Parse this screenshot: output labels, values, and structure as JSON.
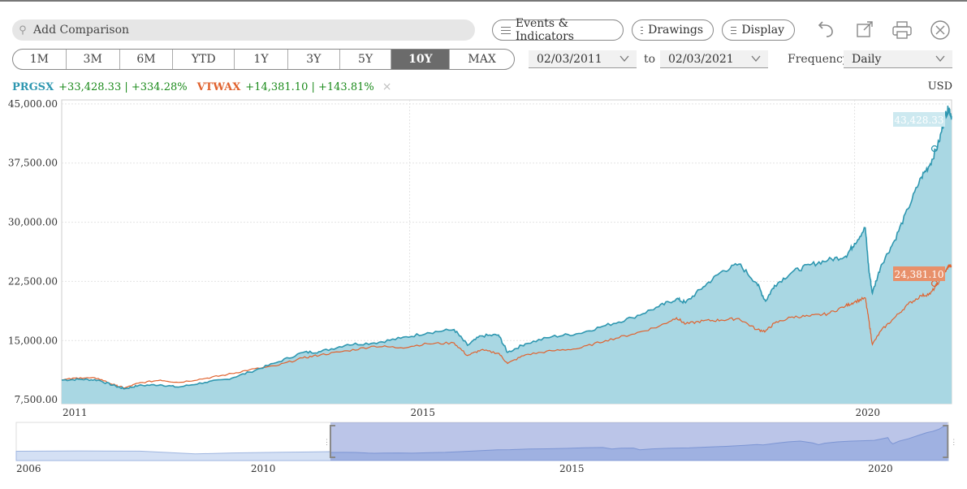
{
  "toolbar": {
    "search_placeholder": "Add Comparison",
    "events_label": "Events & Indicators",
    "drawings_label": "Drawings",
    "display_label": "Display",
    "icons": [
      "undo-icon",
      "export-icon",
      "print-icon",
      "close-icon"
    ]
  },
  "ranges": [
    {
      "label": "1M",
      "active": false
    },
    {
      "label": "3M",
      "active": false
    },
    {
      "label": "6M",
      "active": false
    },
    {
      "label": "YTD",
      "active": false
    },
    {
      "label": "1Y",
      "active": false
    },
    {
      "label": "3Y",
      "active": false
    },
    {
      "label": "5Y",
      "active": false
    },
    {
      "label": "10Y",
      "active": true
    },
    {
      "label": "MAX",
      "active": false
    }
  ],
  "dates": {
    "from": "02/03/2011",
    "to_label": "to",
    "to": "02/03/2021"
  },
  "frequency": {
    "label": "Frequency",
    "value": "Daily"
  },
  "legend": {
    "s1": {
      "ticker": "PRGSX",
      "change": "+33,428.33 | +334.28%"
    },
    "s2": {
      "ticker": "VTWAX",
      "change": "+14,381.10 | +143.81%"
    },
    "remove": "×"
  },
  "currency": "USD",
  "chart_data": {
    "type": "area",
    "x_axis": "date",
    "xlim": [
      2011.09,
      2021.09
    ],
    "ylim": [
      7000,
      45500
    ],
    "yticks": [
      7500,
      15000,
      22500,
      30000,
      37500,
      45000
    ],
    "ytick_labels": [
      "7,500.00",
      "15,000.00",
      "22,500.00",
      "30,000.00",
      "37,500.00",
      "45,000.00"
    ],
    "xticks": [
      2011,
      2015,
      2020
    ],
    "xtick_labels": [
      "2011",
      "2015",
      "2020"
    ],
    "grid": true,
    "series": [
      {
        "name": "PRGSX",
        "color": "#2e97b0",
        "fill": "#a9d7e3",
        "end_label": "43,428.33",
        "points": [
          [
            2011.09,
            10000
          ],
          [
            2011.3,
            10100
          ],
          [
            2011.5,
            10000
          ],
          [
            2011.7,
            9200
          ],
          [
            2011.8,
            8900
          ],
          [
            2011.95,
            9300
          ],
          [
            2012.2,
            9400
          ],
          [
            2012.4,
            9100
          ],
          [
            2012.7,
            9700
          ],
          [
            2012.95,
            10100
          ],
          [
            2013.2,
            11000
          ],
          [
            2013.5,
            12200
          ],
          [
            2013.8,
            13500
          ],
          [
            2014.0,
            13600
          ],
          [
            2014.3,
            14500
          ],
          [
            2014.6,
            14700
          ],
          [
            2014.9,
            15300
          ],
          [
            2015.2,
            16000
          ],
          [
            2015.5,
            16400
          ],
          [
            2015.65,
            14400
          ],
          [
            2015.8,
            15600
          ],
          [
            2016.0,
            15700
          ],
          [
            2016.1,
            13500
          ],
          [
            2016.3,
            14600
          ],
          [
            2016.6,
            15500
          ],
          [
            2016.9,
            15900
          ],
          [
            2017.2,
            16900
          ],
          [
            2017.5,
            17900
          ],
          [
            2017.8,
            19300
          ],
          [
            2018.0,
            20300
          ],
          [
            2018.1,
            19800
          ],
          [
            2018.3,
            21800
          ],
          [
            2018.5,
            23700
          ],
          [
            2018.7,
            24700
          ],
          [
            2018.9,
            22300
          ],
          [
            2019.0,
            20000
          ],
          [
            2019.1,
            22000
          ],
          [
            2019.3,
            23700
          ],
          [
            2019.5,
            24600
          ],
          [
            2019.7,
            25200
          ],
          [
            2019.9,
            25700
          ],
          [
            2020.0,
            27300
          ],
          [
            2020.12,
            29300
          ],
          [
            2020.16,
            24000
          ],
          [
            2020.2,
            21000
          ],
          [
            2020.3,
            24600
          ],
          [
            2020.45,
            27700
          ],
          [
            2020.6,
            31700
          ],
          [
            2020.75,
            35700
          ],
          [
            2020.85,
            37400
          ],
          [
            2020.95,
            40200
          ],
          [
            2021.02,
            43600
          ],
          [
            2021.06,
            44500
          ],
          [
            2021.09,
            43428
          ]
        ]
      },
      {
        "name": "VTWAX",
        "color": "#e0622e",
        "end_label": "24,381.10",
        "points": [
          [
            2011.09,
            10000
          ],
          [
            2011.3,
            10300
          ],
          [
            2011.5,
            10200
          ],
          [
            2011.7,
            9300
          ],
          [
            2011.8,
            9000
          ],
          [
            2011.95,
            9600
          ],
          [
            2012.2,
            10000
          ],
          [
            2012.4,
            9700
          ],
          [
            2012.7,
            10200
          ],
          [
            2012.95,
            10700
          ],
          [
            2013.2,
            11300
          ],
          [
            2013.5,
            11800
          ],
          [
            2013.8,
            12800
          ],
          [
            2014.0,
            13200
          ],
          [
            2014.3,
            13700
          ],
          [
            2014.6,
            14300
          ],
          [
            2014.9,
            14100
          ],
          [
            2015.2,
            14600
          ],
          [
            2015.5,
            14700
          ],
          [
            2015.65,
            13100
          ],
          [
            2015.8,
            13800
          ],
          [
            2016.0,
            13400
          ],
          [
            2016.1,
            12100
          ],
          [
            2016.3,
            13200
          ],
          [
            2016.6,
            13700
          ],
          [
            2016.9,
            14000
          ],
          [
            2017.2,
            15000
          ],
          [
            2017.5,
            15800
          ],
          [
            2017.8,
            16800
          ],
          [
            2018.0,
            17900
          ],
          [
            2018.1,
            17100
          ],
          [
            2018.3,
            17500
          ],
          [
            2018.5,
            17600
          ],
          [
            2018.7,
            17800
          ],
          [
            2018.9,
            16400
          ],
          [
            2019.0,
            16200
          ],
          [
            2019.1,
            17200
          ],
          [
            2019.3,
            18000
          ],
          [
            2019.5,
            18100
          ],
          [
            2019.7,
            18400
          ],
          [
            2019.9,
            19400
          ],
          [
            2020.0,
            19900
          ],
          [
            2020.12,
            20400
          ],
          [
            2020.16,
            17600
          ],
          [
            2020.2,
            14500
          ],
          [
            2020.3,
            16300
          ],
          [
            2020.45,
            17900
          ],
          [
            2020.6,
            19600
          ],
          [
            2020.75,
            20700
          ],
          [
            2020.85,
            20900
          ],
          [
            2020.95,
            22500
          ],
          [
            2021.02,
            23700
          ],
          [
            2021.06,
            24500
          ],
          [
            2021.09,
            24381
          ]
        ]
      }
    ]
  },
  "navigator": {
    "xlim": [
      2006,
      2021.1
    ],
    "xtick_labels": [
      "2006",
      "2010",
      "2015",
      "2020"
    ],
    "xticks": [
      2006,
      2010,
      2015,
      2020
    ],
    "selection": [
      2011.09,
      2021.09
    ]
  }
}
